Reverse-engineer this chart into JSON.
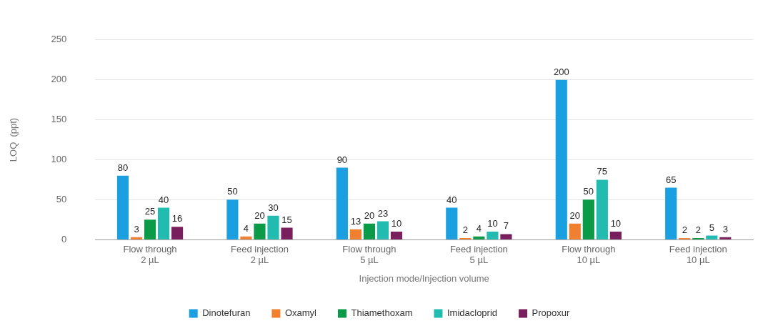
{
  "chart_data": {
    "type": "bar",
    "xlabel": "Injection mode/Injection volume",
    "ylabel": "LOQ  (ppt)",
    "categories": [
      "Flow through\n2 µL",
      "Feed injection\n2 µL",
      "Flow through\n5 µL",
      "Feed injection\n5 µL",
      "Flow through\n10 µL",
      "Feed injection\n10 µL"
    ],
    "series": [
      {
        "name": "Dinotefuran",
        "color": "#1a9fe0",
        "values": [
          80,
          50,
          90,
          40,
          200,
          65
        ]
      },
      {
        "name": "Oxamyl",
        "color": "#f07f2f",
        "values": [
          3,
          4,
          13,
          2,
          20,
          2
        ]
      },
      {
        "name": "Thiamethoxam",
        "color": "#0a9a48",
        "values": [
          25,
          20,
          20,
          4,
          50,
          2
        ]
      },
      {
        "name": "Imidacloprid",
        "color": "#22bbb0",
        "values": [
          40,
          30,
          23,
          10,
          75,
          5
        ]
      },
      {
        "name": "Propoxur",
        "color": "#7a1f5e",
        "values": [
          16,
          15,
          10,
          7,
          10,
          3
        ]
      }
    ],
    "ylim": [
      0,
      250
    ],
    "yticks": [
      0,
      50,
      100,
      150,
      200,
      250
    ],
    "grid": "y",
    "legend": "bottom",
    "data_labels": true
  }
}
